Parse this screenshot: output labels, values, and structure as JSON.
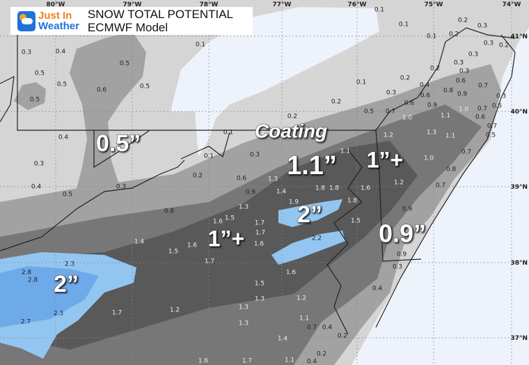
{
  "header": {
    "logo_line1": "Just In",
    "logo_line2": "Weather",
    "title": "SNOW TOTAL POTENTIAL",
    "subtitle": "ECMWF Model"
  },
  "axes": {
    "longitudes": [
      "80°W",
      "79°W",
      "78°W",
      "77°W",
      "76°W",
      "75°W",
      "74°W"
    ],
    "latitudes": [
      "41°N",
      "40°N",
      "39°N",
      "38°N",
      "37°N"
    ]
  },
  "colors": {
    "ocean": "#eef3fb",
    "trace": "#eef2fa",
    "light_gray": "#d5d5d5",
    "mid_gray": "#a2a2a2",
    "dark_gray": "#777777",
    "darker_gray": "#595959",
    "light_blue": "#92c6f1",
    "blue": "#6eaaea",
    "brand_orange": "#f07f1c",
    "brand_blue": "#1f72dc"
  },
  "callouts": [
    "0.5”",
    "Coating",
    "1.1”",
    "1”+",
    "2”",
    "1”+",
    "0.9”",
    "2”"
  ],
  "values": [
    "0.3",
    "0.4",
    "0.5",
    "0.5",
    "0.6",
    "0.5",
    "0.5",
    "0.5",
    "0.1",
    "0.4",
    "0.3",
    "0.4",
    "0.5",
    "0.3",
    "0.2",
    "0.1",
    "0.1",
    "0.3",
    "0.6",
    "0.9",
    "0.1",
    "0.1",
    "0.1",
    "0.2",
    "0.3",
    "0.2",
    "0.3",
    "0.3",
    "0.2",
    "0.2",
    "0.3",
    "0.3",
    "0.1",
    "0.2",
    "0.4",
    "0.3",
    "0.6",
    "0.6",
    "0.8",
    "0.9",
    "0.7",
    "0.6",
    "0.2",
    "0.5",
    "0.7",
    "0.9",
    "1.0",
    "1.0",
    "1.1",
    "0.7",
    "0.5",
    "0.3",
    "0.6",
    "0.7",
    "0.5",
    "0.2",
    "1.2",
    "1.3",
    "1.1",
    "0.7",
    "1.0",
    "0.8",
    "1.2",
    "0.7",
    "1.1",
    "1.6",
    "1.3",
    "1.4",
    "1.8",
    "1.8",
    "1.9",
    "1.8",
    "0.8",
    "1.3",
    "1.5",
    "1.6",
    "1.7",
    "1.7",
    "1.6",
    "1.6",
    "1.4",
    "1.5",
    "1.7",
    "2.3",
    "2.8",
    "2.8",
    "1.5",
    "1.3",
    "1.3",
    "1.3",
    "1.7",
    "1.2",
    "2.3",
    "2.7",
    "1.6",
    "1.7",
    "0.9",
    "1.5",
    "0.9",
    "2.2",
    "1.6",
    "0.3",
    "0.4",
    "1.2",
    "1.1",
    "0.7",
    "0.4",
    "0.2",
    "1.4",
    "0.2",
    "0.4",
    "1.1"
  ]
}
